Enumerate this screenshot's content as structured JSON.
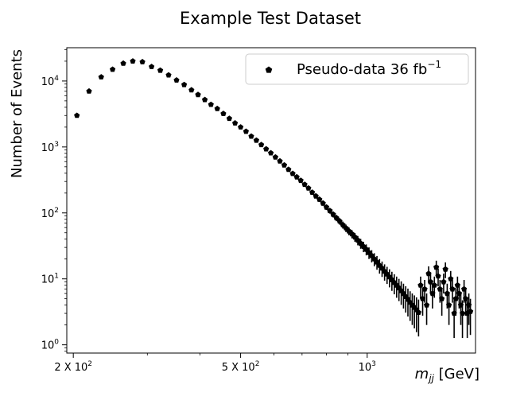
{
  "chart_data": {
    "type": "scatter",
    "title": "Example Test Dataset",
    "xlabel_math": "m",
    "xlabel_sub": "jj",
    "xlabel_unit": " [GeV]",
    "ylabel": "Number of Events",
    "x_scale": "log",
    "y_scale": "log",
    "xlim": [
      193,
      1810
    ],
    "ylim": [
      0.75,
      32000
    ],
    "x_ticks": [
      {
        "value": 200,
        "base": "2 X 10",
        "exp": "2"
      },
      {
        "value": 500,
        "base": "5 X 10",
        "exp": "2"
      },
      {
        "value": 1000,
        "base": "10",
        "exp": "3"
      }
    ],
    "y_ticks": [
      {
        "value": 1,
        "base": "10",
        "exp": "0"
      },
      {
        "value": 10,
        "base": "10",
        "exp": "1"
      },
      {
        "value": 100,
        "base": "10",
        "exp": "2"
      },
      {
        "value": 1000,
        "base": "10",
        "exp": "3"
      },
      {
        "value": 10000,
        "base": "10",
        "exp": "4"
      }
    ],
    "grid": false,
    "legend": {
      "placement": "top-right",
      "text": "Pseudo-data 36 fb",
      "sup": "−1"
    },
    "marker_color": "#000000",
    "series": [
      {
        "name": "Pseudo-data 36 fb−1",
        "error_bars": "poisson",
        "x": [
          204,
          218,
          233,
          248,
          263,
          277,
          292,
          307,
          322,
          337,
          352,
          367,
          382,
          396,
          411,
          425,
          440,
          455,
          470,
          485,
          500,
          515,
          530,
          545,
          560,
          575,
          590,
          605,
          620,
          635,
          650,
          665,
          680,
          695,
          710,
          725,
          740,
          755,
          770,
          785,
          800,
          815,
          830,
          845,
          860,
          875,
          890,
          905,
          920,
          935,
          950,
          965,
          980,
          995,
          1010,
          1025,
          1040,
          1055,
          1070,
          1085,
          1100,
          1115,
          1130,
          1145,
          1160,
          1175,
          1190,
          1205,
          1220,
          1235,
          1250,
          1265,
          1280,
          1295,
          1310,
          1325,
          1340,
          1355,
          1370,
          1385,
          1400,
          1415,
          1430,
          1445,
          1460,
          1475,
          1490,
          1505,
          1520,
          1535,
          1550,
          1565,
          1580,
          1595,
          1610,
          1625,
          1640,
          1655,
          1670,
          1685,
          1700,
          1715,
          1730,
          1745,
          1760
        ],
        "y": [
          3000,
          7000,
          11500,
          15000,
          18500,
          20000,
          19500,
          16500,
          14500,
          12300,
          10300,
          8800,
          7300,
          6200,
          5200,
          4400,
          3800,
          3200,
          2700,
          2300,
          2000,
          1720,
          1450,
          1260,
          1080,
          930,
          810,
          700,
          610,
          530,
          455,
          395,
          350,
          310,
          270,
          237,
          205,
          180,
          160,
          140,
          122,
          108,
          95,
          84,
          75,
          66,
          59,
          53,
          48,
          43,
          38.5,
          34.5,
          31,
          28,
          25,
          22.5,
          20,
          18,
          16,
          14.5,
          13,
          11.8,
          10.7,
          9.7,
          8.8,
          8,
          7.3,
          6.6,
          6,
          5.4,
          4.9,
          4.4,
          4,
          3.7,
          3.4,
          3.1,
          8,
          5,
          7,
          4,
          12,
          9,
          6,
          8,
          15,
          11,
          7,
          5,
          9,
          14,
          6,
          4,
          10,
          7,
          3,
          5,
          8,
          6,
          4,
          3,
          7,
          5,
          3,
          4,
          3.2
        ]
      }
    ]
  }
}
